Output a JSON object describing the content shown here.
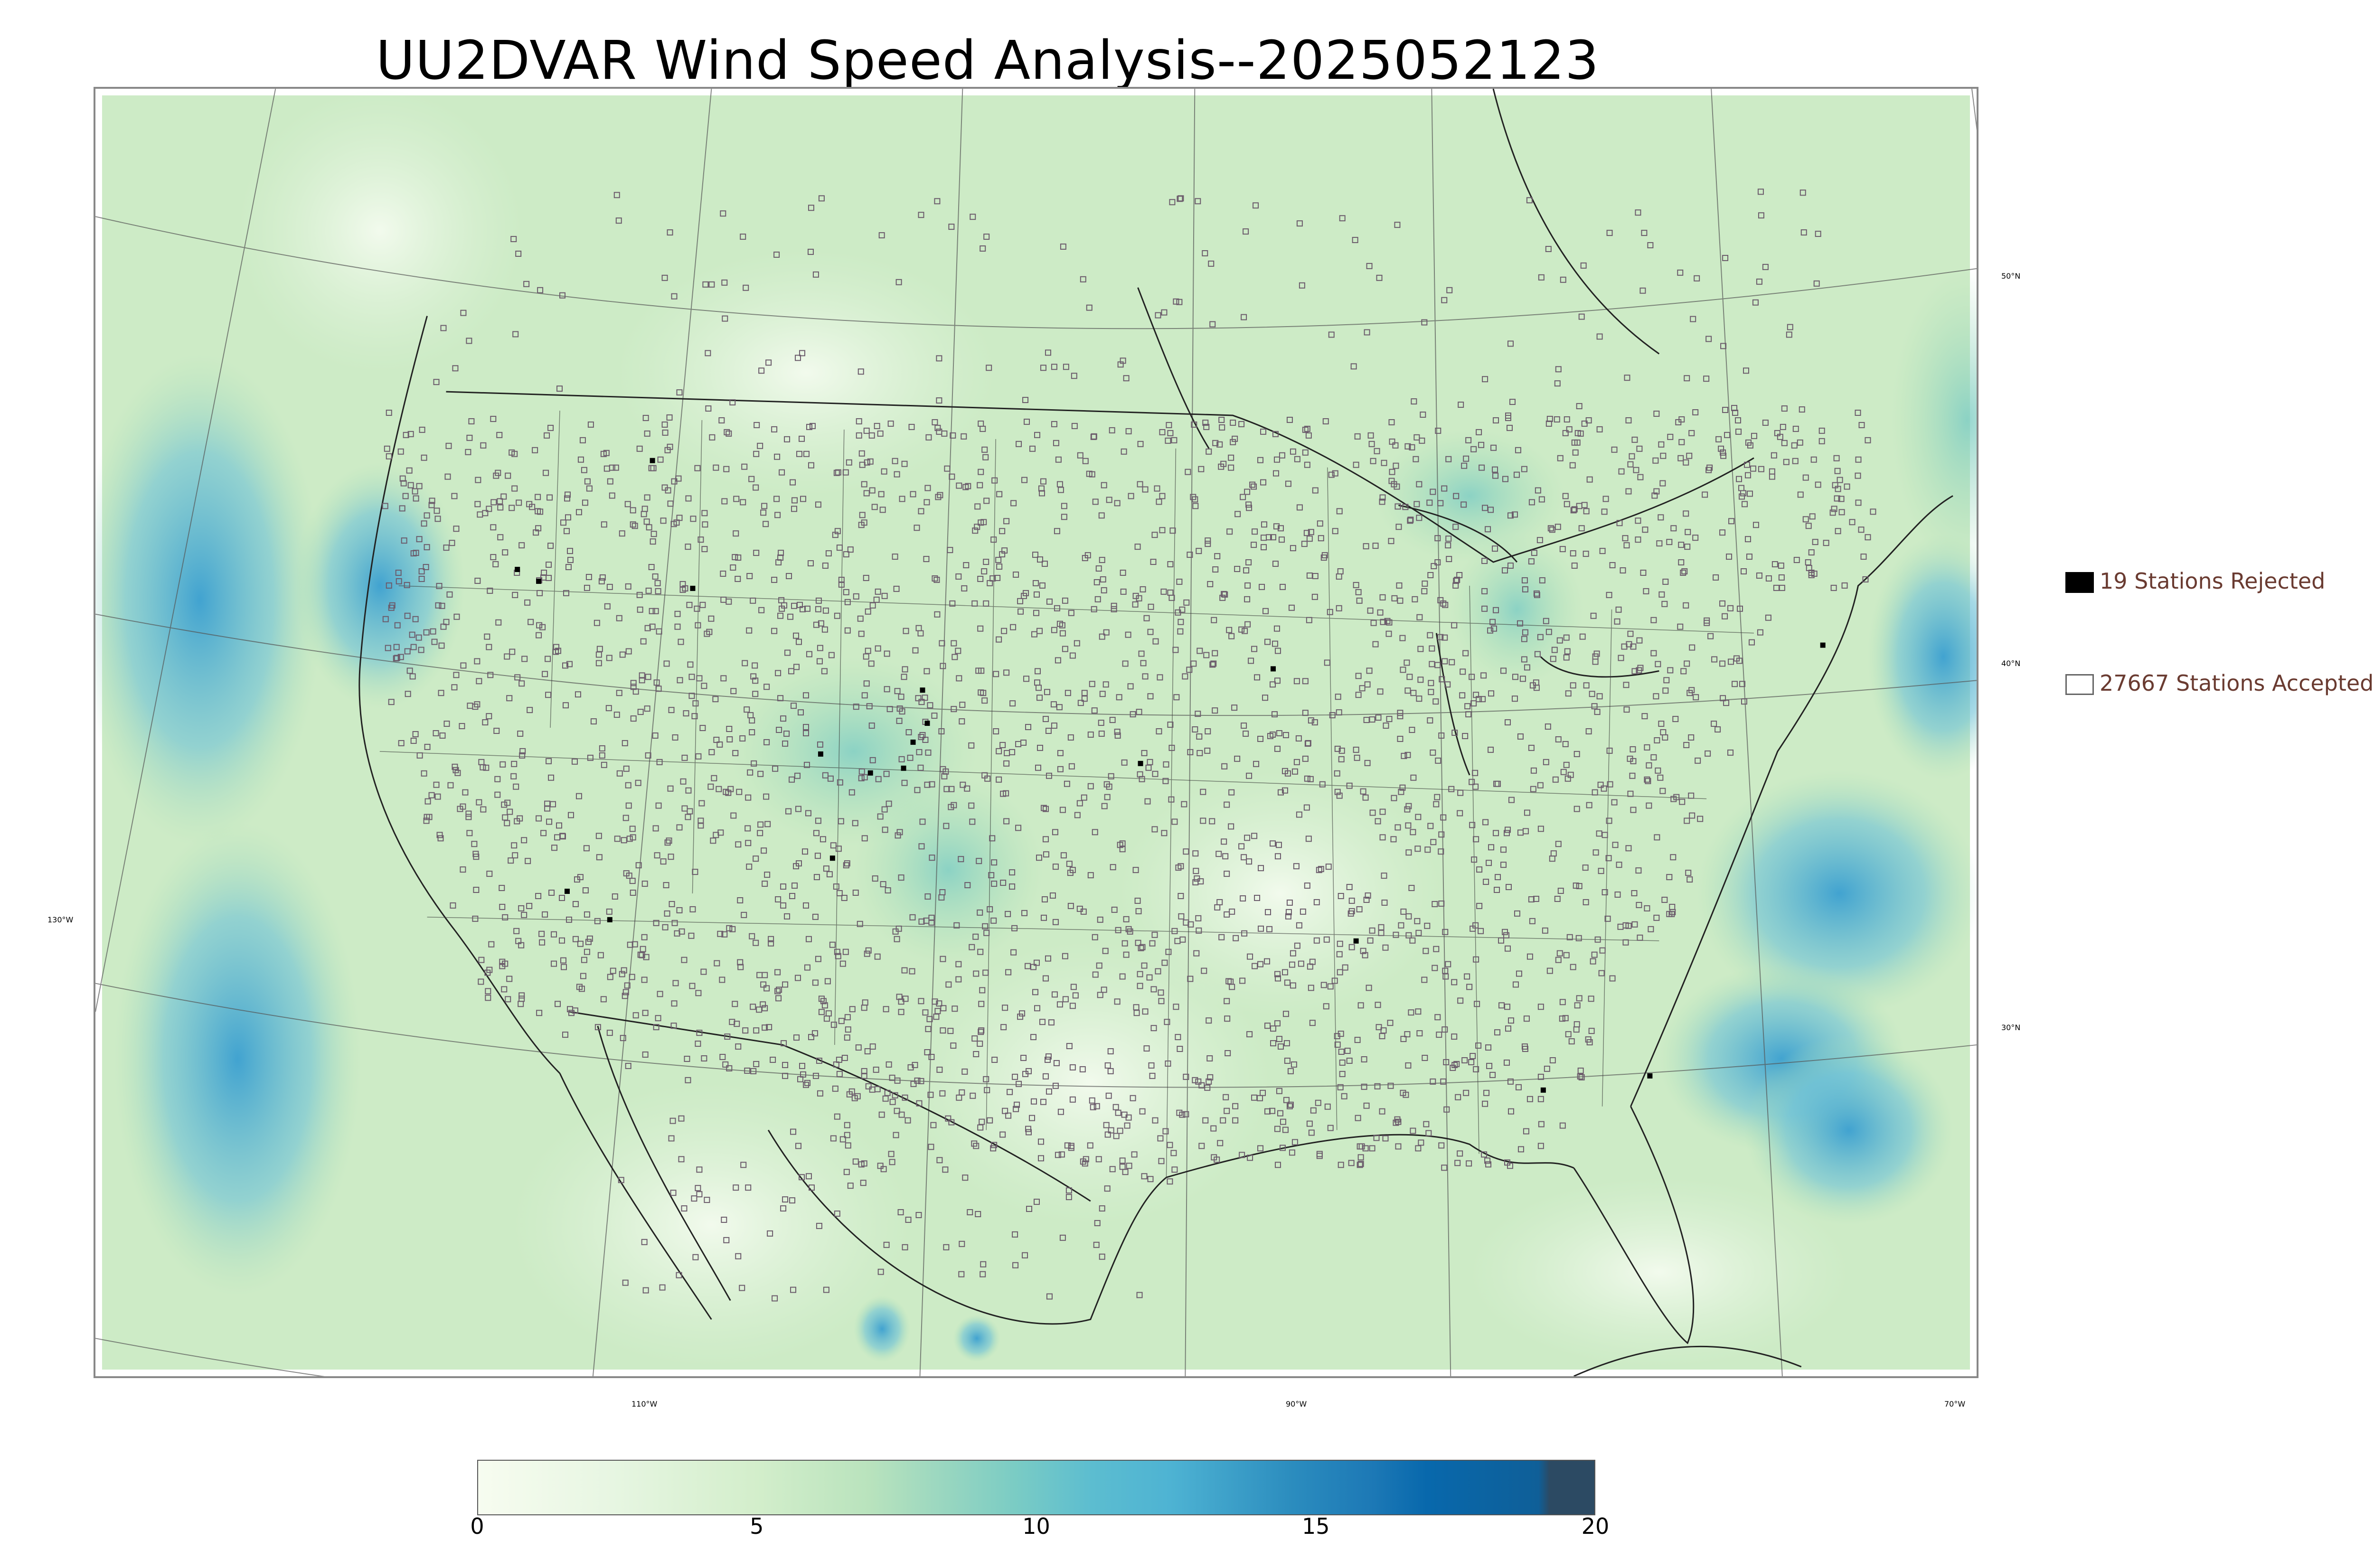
{
  "title": "UU2DVAR Wind Speed Analysis--2025052123",
  "legend": {
    "rejected": {
      "label": "19 Stations Rejected",
      "color": "#000000"
    },
    "accepted": {
      "label": "27667 Stations Accepted",
      "color": "#ffffff"
    }
  },
  "graticule": {
    "latitude_labels": [
      "50°N",
      "40°N",
      "30°N"
    ],
    "longitude_labels": [
      "130°W",
      "110°W",
      "90°W",
      "70°W"
    ]
  },
  "colorbar": {
    "min": 0,
    "max": 20,
    "ticks": [
      "0",
      "5",
      "10",
      "15",
      "20"
    ],
    "colors": [
      "#f7fcf0",
      "#e0f3db",
      "#ccebc5",
      "#a8ddb5",
      "#7bccc4",
      "#4eb3d3",
      "#2b8cbe",
      "#0868ac",
      "#08589e",
      "#2c4a63"
    ]
  },
  "colors": {
    "land_base": "#d9f0d3",
    "ocean_base": "#c7e9c0",
    "windy": "#4eb3d3",
    "station_outline": "#6b5b6b"
  }
}
